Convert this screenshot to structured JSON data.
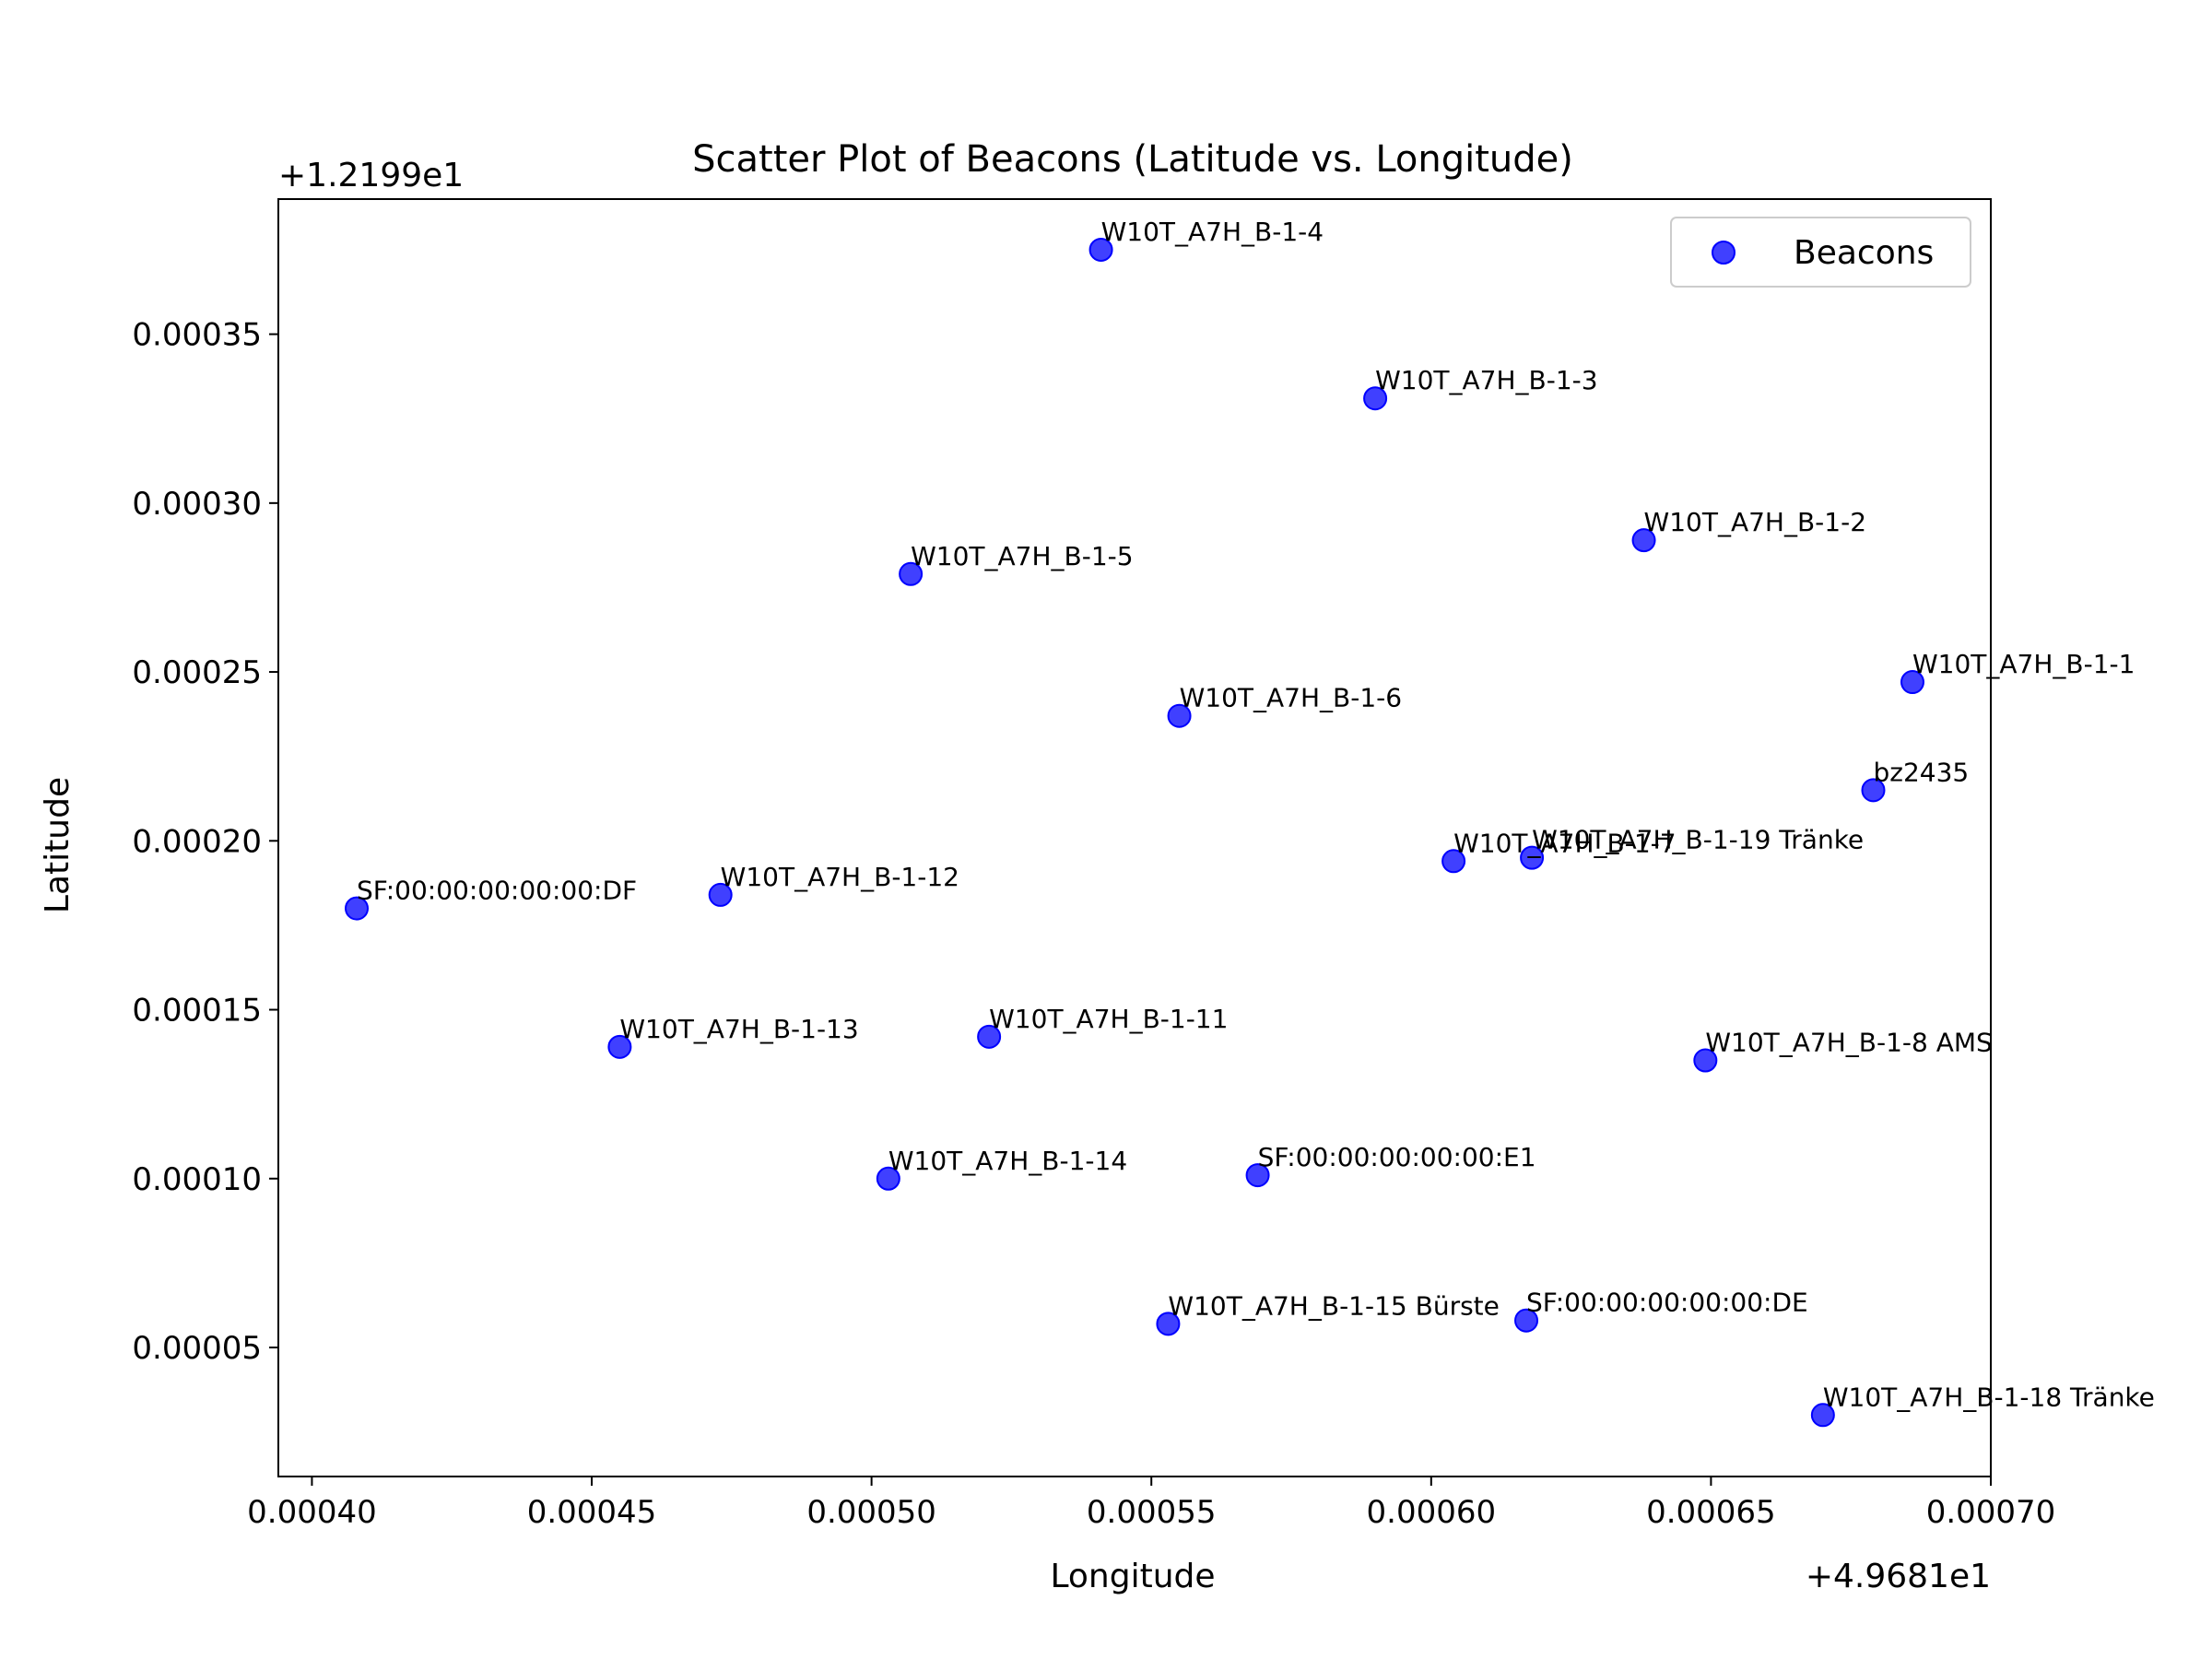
{
  "chart_data": {
    "type": "scatter",
    "title": "Scatter Plot of Beacons (Latitude vs. Longitude)",
    "xlabel": "Longitude",
    "ylabel": "Latitude",
    "x_offset_text": "+4.9681e1",
    "y_offset_text": "+1.2199e1",
    "xlim": [
      0.000394,
      0.0007
    ],
    "ylim": [
      1.18e-05,
      0.00039
    ],
    "xticks": [
      0.0004,
      0.00045,
      0.0005,
      0.00055,
      0.0006,
      0.00065,
      0.0007
    ],
    "xtick_labels": [
      "0.00040",
      "0.00045",
      "0.00050",
      "0.00055",
      "0.00060",
      "0.00065",
      "0.00070"
    ],
    "yticks": [
      5e-05,
      0.0001,
      0.00015,
      0.0002,
      0.00025,
      0.0003,
      0.00035
    ],
    "ytick_labels": [
      "0.00005",
      "0.00010",
      "0.00015",
      "0.00020",
      "0.00025",
      "0.00030",
      "0.00035"
    ],
    "grid": false,
    "legend_position": "top-right",
    "series": [
      {
        "name": "Beacons",
        "color": "#0000ff",
        "points": [
          {
            "label": "W10T_A7H_B-1-4",
            "x": 0.000541,
            "y": 0.000375
          },
          {
            "label": "W10T_A7H_B-1-3",
            "x": 0.00059,
            "y": 0.000331
          },
          {
            "label": "W10T_A7H_B-1-2",
            "x": 0.000638,
            "y": 0.000289
          },
          {
            "label": "W10T_A7H_B-1-5",
            "x": 0.000507,
            "y": 0.000279
          },
          {
            "label": "W10T_A7H_B-1-1",
            "x": 0.000686,
            "y": 0.000247
          },
          {
            "label": "W10T_A7H_B-1-6",
            "x": 0.000555,
            "y": 0.000237
          },
          {
            "label": "bz2435",
            "x": 0.000679,
            "y": 0.000215
          },
          {
            "label": "W10T_A7H_B-1-7",
            "x": 0.000604,
            "y": 0.000194
          },
          {
            "label": "W10T_A7H_B-1-19 Tränke",
            "x": 0.000618,
            "y": 0.000195
          },
          {
            "label": "SF:00:00:00:00:00:DF",
            "x": 0.000408,
            "y": 0.00018
          },
          {
            "label": "W10T_A7H_B-1-12",
            "x": 0.000473,
            "y": 0.000184
          },
          {
            "label": "W10T_A7H_B-1-13",
            "x": 0.000455,
            "y": 0.000139
          },
          {
            "label": "W10T_A7H_B-1-11",
            "x": 0.000521,
            "y": 0.000142
          },
          {
            "label": "W10T_A7H_B-1-8 AMS",
            "x": 0.000649,
            "y": 0.000135
          },
          {
            "label": "W10T_A7H_B-1-14",
            "x": 0.000503,
            "y": 0.0001
          },
          {
            "label": "SF:00:00:00:00:00:E1",
            "x": 0.000569,
            "y": 0.000101
          },
          {
            "label": "W10T_A7H_B-1-15 Bürste",
            "x": 0.000553,
            "y": 5.7e-05
          },
          {
            "label": "SF:00:00:00:00:00:DE",
            "x": 0.000617,
            "y": 5.8e-05
          },
          {
            "label": "W10T_A7H_B-1-18 Tränke",
            "x": 0.00067,
            "y": 3e-05
          }
        ]
      }
    ]
  }
}
